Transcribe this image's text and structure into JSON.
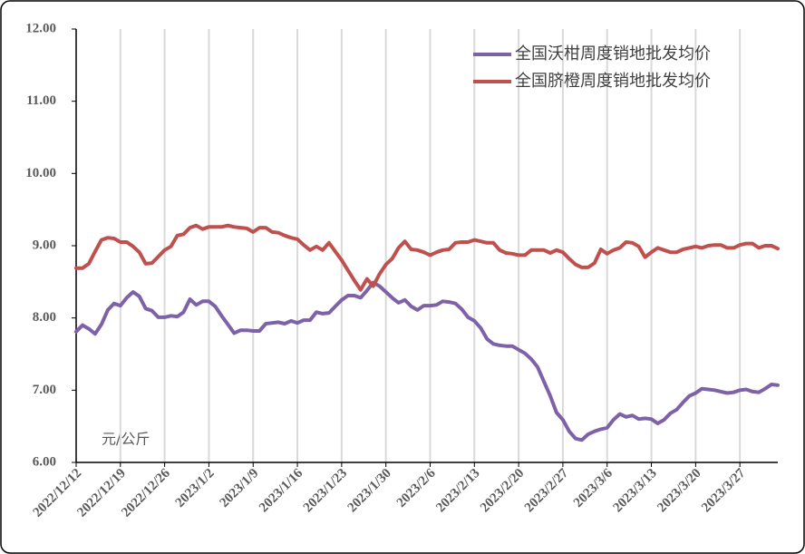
{
  "chart_data": {
    "type": "line",
    "categories": [
      "2022/12/12",
      null,
      null,
      null,
      null,
      null,
      null,
      "2022/12/19",
      null,
      null,
      null,
      null,
      null,
      null,
      "2022/12/26",
      null,
      null,
      null,
      null,
      null,
      null,
      "2023/1/2",
      null,
      null,
      null,
      null,
      null,
      null,
      "2023/1/9",
      null,
      null,
      null,
      null,
      null,
      null,
      "2023/1/16",
      null,
      null,
      null,
      null,
      null,
      null,
      "2023/1/23",
      null,
      null,
      null,
      null,
      null,
      null,
      "2023/1/30",
      null,
      null,
      null,
      null,
      null,
      null,
      "2023/2/6",
      null,
      null,
      null,
      null,
      null,
      null,
      "2023/2/13",
      null,
      null,
      null,
      null,
      null,
      null,
      "2023/2/20",
      null,
      null,
      null,
      null,
      null,
      null,
      "2023/2/27",
      null,
      null,
      null,
      null,
      null,
      null,
      "2023/3/6",
      null,
      null,
      null,
      null,
      null,
      null,
      "2023/3/13",
      null,
      null,
      null,
      null,
      null,
      null,
      "2023/3/20",
      null,
      null,
      null,
      null,
      null,
      null,
      "2023/3/27",
      null,
      null,
      null,
      null,
      null,
      null
    ],
    "series": [
      {
        "name": "全国沃柑周度销地批发均价",
        "color": "#7e62a8",
        "values": [
          7.81,
          7.9,
          7.85,
          7.78,
          7.91,
          8.11,
          8.2,
          8.17,
          8.28,
          8.36,
          8.3,
          8.13,
          8.1,
          8.01,
          8.01,
          8.03,
          8.02,
          8.08,
          8.26,
          8.18,
          8.23,
          8.23,
          8.16,
          8.03,
          7.91,
          7.79,
          7.83,
          7.83,
          7.82,
          7.82,
          7.92,
          7.93,
          7.94,
          7.92,
          7.96,
          7.93,
          7.97,
          7.97,
          8.08,
          8.06,
          8.07,
          8.16,
          8.25,
          8.31,
          8.31,
          8.28,
          8.38,
          8.49,
          8.44,
          8.36,
          8.28,
          8.21,
          8.25,
          8.16,
          8.11,
          8.17,
          8.17,
          8.18,
          8.23,
          8.22,
          8.2,
          8.12,
          8.01,
          7.96,
          7.86,
          7.71,
          7.64,
          7.62,
          7.61,
          7.61,
          7.56,
          7.51,
          7.43,
          7.32,
          7.12,
          6.92,
          6.69,
          6.59,
          6.43,
          6.33,
          6.31,
          6.39,
          6.43,
          6.46,
          6.48,
          6.59,
          6.67,
          6.63,
          6.65,
          6.6,
          6.61,
          6.6,
          6.54,
          6.59,
          6.68,
          6.73,
          6.83,
          6.92,
          6.96,
          7.02,
          7.01,
          7.0,
          6.98,
          6.96,
          6.97,
          7.0,
          7.01,
          6.98,
          6.97,
          7.02,
          7.08,
          7.07
        ]
      },
      {
        "name": "全国脐橙周度销地批发均价",
        "color": "#c0504d",
        "values": [
          8.69,
          8.69,
          8.75,
          8.92,
          9.08,
          9.11,
          9.1,
          9.05,
          9.05,
          8.99,
          8.91,
          8.75,
          8.76,
          8.85,
          8.94,
          8.99,
          9.14,
          9.16,
          9.25,
          9.28,
          9.23,
          9.26,
          9.26,
          9.26,
          9.28,
          9.26,
          9.25,
          9.24,
          9.19,
          9.25,
          9.25,
          9.19,
          9.18,
          9.14,
          9.11,
          9.09,
          9.01,
          8.94,
          8.99,
          8.94,
          9.04,
          8.92,
          8.8,
          8.66,
          8.52,
          8.39,
          8.54,
          8.44,
          8.61,
          8.74,
          8.82,
          8.97,
          9.06,
          8.95,
          8.94,
          8.91,
          8.87,
          8.91,
          8.94,
          8.95,
          9.04,
          9.05,
          9.05,
          9.08,
          9.06,
          9.04,
          9.04,
          8.94,
          8.9,
          8.89,
          8.87,
          8.87,
          8.94,
          8.94,
          8.94,
          8.9,
          8.94,
          8.91,
          8.82,
          8.74,
          8.7,
          8.7,
          8.76,
          8.95,
          8.89,
          8.94,
          8.97,
          9.05,
          9.04,
          8.99,
          8.84,
          8.91,
          8.97,
          8.94,
          8.91,
          8.91,
          8.95,
          8.97,
          8.99,
          8.97,
          9.0,
          9.01,
          9.01,
          8.97,
          8.97,
          9.01,
          9.03,
          9.03,
          8.97,
          9.0,
          9.0,
          8.96
        ]
      }
    ],
    "ylim": [
      6,
      12
    ],
    "yticks": [
      {
        "value": 6,
        "label": "6.00"
      },
      {
        "value": 7,
        "label": "7.00"
      },
      {
        "value": 8,
        "label": "8.00"
      },
      {
        "value": 9,
        "label": "9.00"
      },
      {
        "value": 10,
        "label": "10.00"
      },
      {
        "value": 11,
        "label": "11.00"
      },
      {
        "value": 12,
        "label": "12.00"
      }
    ],
    "annotation": "元/公斤",
    "grid": true,
    "legend": "upper right"
  }
}
